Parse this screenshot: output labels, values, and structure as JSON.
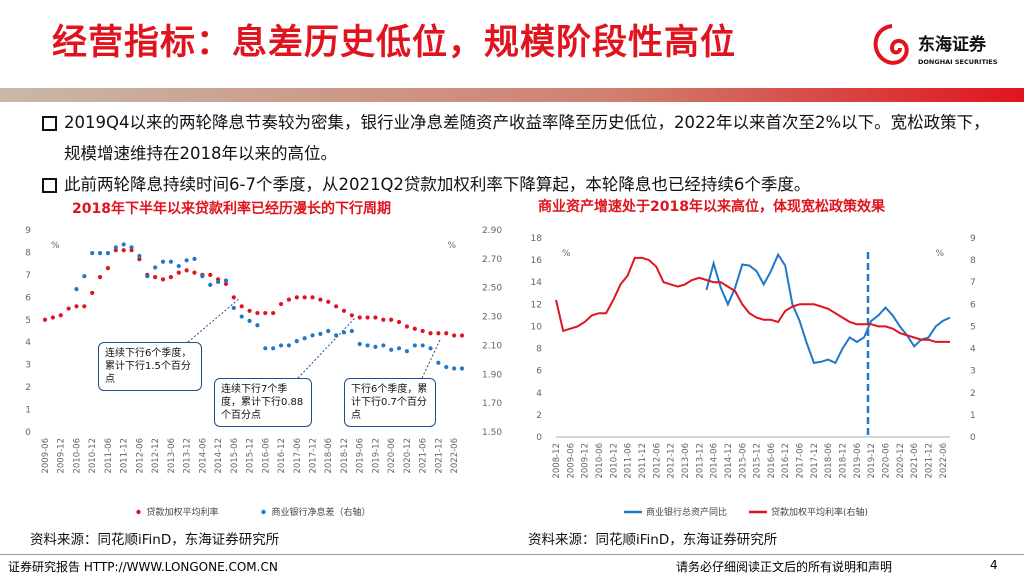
{
  "header": {
    "title": "经营指标：息差历史低位，规模阶段性高位",
    "logo_cn": "东海证券",
    "logo_en": "DONGHAI SECURITIES"
  },
  "bullets": [
    "2019Q4以来的两轮降息节奏较为密集，银行业净息差随资产收益率降至历史低位，2022年以来首次至2%以下。宽松政策下，规模增速维持在2018年以来的高位。",
    "此前两轮降息持续时间6-7个季度，从2021Q2贷款加权利率下降算起，本轮降息也已经持续6个季度。"
  ],
  "chart_data": [
    {
      "type": "dot",
      "title": "2018年下半年以来贷款利率已经历漫长的下行周期",
      "ylabel": "%",
      "y2label": "%",
      "categories": [
        "2009-06",
        null,
        "2009-12",
        null,
        "2010-06",
        null,
        "2010-12",
        null,
        "2011-06",
        null,
        "2011-12",
        null,
        "2012-06",
        null,
        "2012-12",
        null,
        "2013-06",
        null,
        "2013-12",
        null,
        "2014-06",
        null,
        "2014-12",
        null,
        "2015-06",
        null,
        "2015-12",
        null,
        "2016-06",
        null,
        "2016-12",
        null,
        "2017-06",
        null,
        "2017-12",
        null,
        "2018-06",
        null,
        "2018-12",
        null,
        "2019-06",
        null,
        "2019-12",
        null,
        "2020-06",
        null,
        "2020-12",
        null,
        "2021-06",
        null,
        "2021-12",
        null,
        "2022-06",
        null
      ],
      "series": [
        {
          "name": "贷款加权平均利率",
          "color": "#e0141e",
          "values": [
            5.0,
            5.1,
            5.2,
            5.5,
            5.6,
            5.6,
            6.2,
            6.9,
            7.3,
            8.1,
            8.1,
            8.1,
            7.7,
            7.0,
            6.9,
            6.8,
            6.9,
            7.1,
            7.2,
            7.1,
            7.0,
            7.0,
            6.8,
            6.6,
            6.0,
            5.6,
            5.4,
            5.3,
            5.3,
            5.3,
            5.7,
            5.9,
            6.0,
            6.0,
            6.0,
            5.9,
            5.8,
            5.6,
            5.4,
            5.2,
            5.1,
            5.1,
            5.1,
            5.0,
            5.0,
            4.9,
            4.7,
            4.6,
            4.5,
            4.4,
            4.4,
            4.4,
            4.3,
            4.3
          ]
        },
        {
          "name": "商业银行净息差（右轴）",
          "color": "#1f78c8",
          "axis": "y2",
          "values": [
            null,
            null,
            null,
            null,
            2.49,
            2.58,
            2.74,
            2.74,
            2.74,
            2.78,
            2.8,
            2.78,
            2.72,
            2.58,
            2.64,
            2.68,
            2.68,
            2.65,
            2.69,
            2.7,
            2.58,
            2.52,
            2.54,
            2.55,
            2.36,
            2.3,
            2.27,
            2.24,
            2.08,
            2.08,
            2.1,
            2.1,
            2.13,
            2.15,
            2.17,
            2.18,
            2.2,
            2.17,
            2.19,
            2.2,
            2.11,
            2.1,
            2.09,
            2.1,
            2.07,
            2.08,
            2.06,
            2.1,
            2.1,
            2.08,
            1.98,
            1.95,
            1.94,
            1.94
          ]
        }
      ],
      "ylim": [
        0,
        9
      ],
      "yticks": [
        0,
        1,
        2,
        3,
        4,
        5,
        6,
        7,
        8,
        9
      ],
      "y2lim": [
        1.5,
        2.9
      ],
      "y2ticks": [
        {
          "value": 1.5,
          "label": "1.50"
        },
        {
          "value": 1.7,
          "label": "1.70"
        },
        {
          "value": 1.9,
          "label": "1.90"
        },
        {
          "value": 2.1,
          "label": "2.10"
        },
        {
          "value": 2.3,
          "label": "2.30"
        },
        {
          "value": 2.5,
          "label": "2.50"
        },
        {
          "value": 2.7,
          "label": "2.70"
        },
        {
          "value": 2.9,
          "label": "2.90"
        }
      ],
      "annotations": [
        "连续下行6个季度，累计下行1.5个百分点",
        "连续下行7个季度，累计下行0.88个百分点",
        "下行6个季度，累计下行0.7个百分点"
      ],
      "source": "资料来源：同花顺iFinD，东海证券研究所"
    },
    {
      "type": "line",
      "title": "商业资产增速处于2018年以来高位，体现宽松政策效果",
      "ylabel": "%",
      "y2label": "%",
      "categories": [
        "2008-12",
        null,
        "2009-06",
        null,
        "2009-12",
        null,
        "2010-06",
        null,
        "2010-12",
        null,
        "2011-06",
        null,
        "2011-12",
        null,
        "2012-06",
        null,
        "2012-12",
        null,
        "2013-06",
        null,
        "2013-12",
        null,
        "2014-06",
        null,
        "2014-12",
        null,
        "2015-06",
        null,
        "2015-12",
        null,
        "2016-06",
        null,
        "2016-12",
        null,
        "2017-06",
        null,
        "2017-12",
        null,
        "2018-06",
        null,
        "2018-12",
        null,
        "2019-06",
        null,
        "2019-12",
        null,
        "2020-06",
        null,
        "2020-12",
        null,
        "2021-06",
        null,
        "2021-12",
        null,
        "2022-06",
        null
      ],
      "series": [
        {
          "name": "商业银行总资产同比",
          "color": "#1f78c8",
          "values": [
            null,
            null,
            null,
            null,
            null,
            null,
            null,
            null,
            null,
            null,
            null,
            null,
            null,
            null,
            null,
            null,
            null,
            null,
            null,
            null,
            null,
            13.3,
            15.7,
            13.5,
            12.0,
            13.5,
            15.6,
            15.5,
            15.0,
            13.8,
            15.0,
            16.5,
            15.5,
            12.0,
            10.5,
            8.5,
            6.7,
            6.8,
            7.0,
            6.7,
            8.0,
            9.0,
            8.6,
            9.0,
            10.5,
            11.0,
            11.7,
            11.0,
            10.0,
            9.2,
            8.2,
            8.8,
            9.0,
            10.0,
            10.5,
            10.8
          ]
        },
        {
          "name": "贷款加权平均利率(右轴)",
          "color": "#e0141e",
          "axis": "y2",
          "values": [
            6.2,
            4.8,
            4.9,
            5.0,
            5.2,
            5.5,
            5.6,
            5.6,
            6.2,
            6.9,
            7.3,
            8.1,
            8.1,
            8.0,
            7.7,
            7.0,
            6.9,
            6.8,
            6.9,
            7.1,
            7.2,
            7.1,
            7.0,
            7.0,
            6.8,
            6.6,
            6.0,
            5.6,
            5.4,
            5.3,
            5.3,
            5.2,
            5.7,
            5.9,
            6.0,
            6.0,
            6.0,
            5.9,
            5.8,
            5.6,
            5.4,
            5.2,
            5.1,
            5.1,
            5.1,
            5.0,
            5.0,
            4.9,
            4.7,
            4.6,
            4.5,
            4.4,
            4.4,
            4.3,
            4.3,
            4.3
          ]
        }
      ],
      "ylim": [
        0,
        18
      ],
      "yticks": [
        0,
        2,
        4,
        6,
        8,
        10,
        12,
        14,
        16,
        18
      ],
      "y2lim": [
        0,
        9
      ],
      "y2ticks": [
        0,
        1,
        2,
        3,
        4,
        5,
        6,
        7,
        8,
        9
      ],
      "source": "资料来源：同花顺iFinD，东海证券研究所"
    }
  ],
  "footer": {
    "left": "证券研究报告 HTTP://WWW.LONGONE.COM.CN",
    "right": "请务必仔细阅读正文后的所有说明和声明",
    "page": "4"
  }
}
